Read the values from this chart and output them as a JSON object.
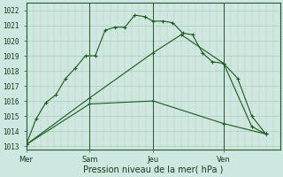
{
  "title": "Pression niveau de la mer( hPa )",
  "ylabel_ticks": [
    1013,
    1014,
    1015,
    1016,
    1017,
    1018,
    1019,
    1020,
    1021,
    1022
  ],
  "ylim": [
    1012.8,
    1022.5
  ],
  "xlim": [
    0,
    18
  ],
  "xtick_positions": [
    0,
    4.5,
    9,
    14
  ],
  "xtick_labels": [
    "Mer",
    "Sam",
    "Jeu",
    "Ven"
  ],
  "vlines": [
    0,
    4.5,
    9,
    14
  ],
  "background_color": "#cce8e0",
  "line_color": "#1a5c1a",
  "lines": [
    {
      "x": [
        0,
        0.7,
        1.4,
        2.1,
        2.8,
        3.5,
        4.2,
        4.9,
        5.6,
        6.3,
        7.0,
        7.7,
        8.4,
        9.0,
        9.7,
        10.4,
        11.1,
        11.8,
        12.5,
        13.2,
        14,
        15,
        16,
        17
      ],
      "y": [
        1013.1,
        1014.8,
        1015.9,
        1016.4,
        1017.5,
        1018.2,
        1019.0,
        1019.0,
        1020.7,
        1020.9,
        1020.9,
        1021.7,
        1021.6,
        1021.3,
        1021.3,
        1021.2,
        1020.5,
        1020.4,
        1019.2,
        1018.6,
        1018.5,
        1017.5,
        1015.0,
        1013.8
      ]
    },
    {
      "x": [
        0,
        4.5,
        9,
        11,
        14,
        16,
        17
      ],
      "y": [
        1013.1,
        1016.2,
        1019.2,
        1020.4,
        1018.5,
        1014.3,
        1013.8
      ]
    },
    {
      "x": [
        0,
        4.5,
        9,
        14,
        17
      ],
      "y": [
        1013.1,
        1015.8,
        1016.0,
        1014.5,
        1013.8
      ]
    }
  ]
}
